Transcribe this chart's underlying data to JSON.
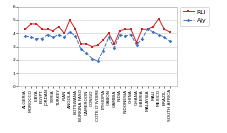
{
  "categories": [
    "ALGERIA",
    "MOROCCO",
    "LIBYA",
    "EGYPT",
    "JORDAN",
    "SYRIA",
    "TURKEY",
    "IRAN",
    "ANGOLA",
    "BOTSWANA",
    "BURKINA FASO",
    "CAMEROON",
    "CONGO",
    "COTE D'IVOIRE",
    "ETHIOPIA",
    "GABON",
    "GAMBIA",
    "INDIA",
    "INDONESIA",
    "CHINA",
    "GHANA",
    "LIBERIA",
    "MALAYSIA",
    "MALI",
    "MEXICO",
    "BRAZIL",
    "SOUTH AFRICA"
  ],
  "series1_name": "RLI",
  "series2_name": "Ajy",
  "series1_color": "#cc2222",
  "series2_color": "#4472c4",
  "series1": [
    4.3,
    4.7,
    4.7,
    4.3,
    4.3,
    4.2,
    4.5,
    4.0,
    5.0,
    4.3,
    3.2,
    3.2,
    3.0,
    3.1,
    3.5,
    4.0,
    3.2,
    4.2,
    4.3,
    4.3,
    3.3,
    4.3,
    4.3,
    4.5,
    5.1,
    4.3,
    4.1
  ],
  "series2": [
    3.8,
    3.7,
    3.6,
    3.6,
    3.9,
    3.7,
    3.9,
    3.7,
    4.1,
    3.8,
    2.8,
    2.5,
    2.1,
    1.9,
    2.7,
    3.7,
    2.9,
    3.9,
    3.8,
    3.9,
    3.1,
    3.6,
    4.3,
    4.1,
    3.9,
    3.7,
    3.4
  ],
  "ylim": [
    0,
    6
  ],
  "yticks": [
    0,
    1,
    2,
    3,
    4,
    5,
    6
  ],
  "background_color": "#ffffff",
  "grid_color": "#cccccc",
  "legend_fontsize": 4.5,
  "tick_fontsize": 3.2,
  "marker_size": 1.8,
  "line_width": 0.7
}
